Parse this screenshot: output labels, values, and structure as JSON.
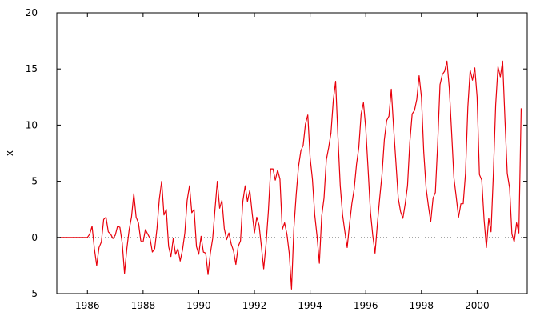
{
  "chart_data": {
    "type": "line",
    "title": "",
    "xlabel": "",
    "ylabel": "x",
    "xlim": [
      1984.9,
      2001.8
    ],
    "ylim": [
      -5,
      20
    ],
    "x_ticks": [
      1986,
      1988,
      1990,
      1992,
      1994,
      1996,
      1998,
      2000
    ],
    "x_tick_labels": [
      "1986",
      "1988",
      "1990",
      "1992",
      "1994",
      "1996",
      "1998",
      "2000"
    ],
    "y_ticks": [
      -5,
      0,
      5,
      10,
      15,
      20
    ],
    "y_tick_labels": [
      "-5",
      "0",
      "5",
      "10",
      "15",
      "20"
    ],
    "grid": false,
    "legend": "none",
    "zero_line": {
      "y": 0,
      "style": "dotted",
      "color": "#888888"
    },
    "line_color": "#e8000b",
    "series": [
      {
        "name": "",
        "x": [
          1985.0,
          1985.083,
          1985.167,
          1985.25,
          1985.333,
          1985.417,
          1985.5,
          1985.583,
          1985.667,
          1985.75,
          1985.833,
          1985.917,
          1986.0,
          1986.083,
          1986.167,
          1986.25,
          1986.333,
          1986.417,
          1986.5,
          1986.583,
          1986.667,
          1986.75,
          1986.833,
          1986.917,
          1987.0,
          1987.083,
          1987.167,
          1987.25,
          1987.333,
          1987.417,
          1987.5,
          1987.583,
          1987.667,
          1987.75,
          1987.833,
          1987.917,
          1988.0,
          1988.083,
          1988.167,
          1988.25,
          1988.333,
          1988.417,
          1988.5,
          1988.583,
          1988.667,
          1988.75,
          1988.833,
          1988.917,
          1989.0,
          1989.083,
          1989.167,
          1989.25,
          1989.333,
          1989.417,
          1989.5,
          1989.583,
          1989.667,
          1989.75,
          1989.833,
          1989.917,
          1990.0,
          1990.083,
          1990.167,
          1990.25,
          1990.333,
          1990.417,
          1990.5,
          1990.583,
          1990.667,
          1990.75,
          1990.833,
          1990.917,
          1991.0,
          1991.083,
          1991.167,
          1991.25,
          1991.333,
          1991.417,
          1991.5,
          1991.583,
          1991.667,
          1991.75,
          1991.833,
          1991.917,
          1992.0,
          1992.083,
          1992.167,
          1992.25,
          1992.333,
          1992.417,
          1992.5,
          1992.583,
          1992.667,
          1992.75,
          1992.833,
          1992.917,
          1993.0,
          1993.083,
          1993.167,
          1993.25,
          1993.333,
          1993.417,
          1993.5,
          1993.583,
          1993.667,
          1993.75,
          1993.833,
          1993.917,
          1994.0,
          1994.083,
          1994.167,
          1994.25,
          1994.333,
          1994.417,
          1994.5,
          1994.583,
          1994.667,
          1994.75,
          1994.833,
          1994.917,
          1995.0,
          1995.083,
          1995.167,
          1995.25,
          1995.333,
          1995.417,
          1995.5,
          1995.583,
          1995.667,
          1995.75,
          1995.833,
          1995.917,
          1996.0,
          1996.083,
          1996.167,
          1996.25,
          1996.333,
          1996.417,
          1996.5,
          1996.583,
          1996.667,
          1996.75,
          1996.833,
          1996.917,
          1997.0,
          1997.083,
          1997.167,
          1997.25,
          1997.333,
          1997.417,
          1997.5,
          1997.583,
          1997.667,
          1997.75,
          1997.833,
          1997.917,
          1998.0,
          1998.083,
          1998.167,
          1998.25,
          1998.333,
          1998.417,
          1998.5,
          1998.583,
          1998.667,
          1998.75,
          1998.833,
          1998.917,
          1999.0,
          1999.083,
          1999.167,
          1999.25,
          1999.333,
          1999.417,
          1999.5,
          1999.583,
          1999.667,
          1999.75,
          1999.833,
          1999.917,
          2000.0,
          2000.083,
          2000.167,
          2000.25,
          2000.333,
          2000.417,
          2000.5,
          2000.583,
          2000.667,
          2000.75,
          2000.833,
          2000.917,
          2001.0,
          2001.083,
          2001.167,
          2001.25,
          2001.333,
          2001.417,
          2001.5,
          2001.583
        ],
        "y": [
          0,
          0,
          0,
          0,
          0,
          0,
          0,
          0,
          0,
          0,
          0,
          0,
          0,
          0.3,
          1.0,
          -1.0,
          -2.5,
          -0.9,
          -0.4,
          1.6,
          1.8,
          0.5,
          0.3,
          -0.1,
          0.2,
          1.0,
          0.9,
          -0.5,
          -3.2,
          -1.0,
          0.7,
          1.8,
          3.9,
          1.8,
          1.3,
          -0.3,
          -0.4,
          0.7,
          0.3,
          -0.1,
          -1.3,
          -1.0,
          0.8,
          3.4,
          5.0,
          2.0,
          2.5,
          -0.8,
          -1.7,
          -0.1,
          -1.5,
          -1.0,
          -2.1,
          -1.1,
          0.4,
          3.3,
          4.6,
          2.2,
          2.5,
          -0.8,
          -1.5,
          0.1,
          -1.3,
          -1.4,
          -3.3,
          -1.4,
          -0.1,
          2.5,
          5.0,
          2.6,
          3.3,
          0.8,
          -0.2,
          0.4,
          -0.6,
          -1.2,
          -2.4,
          -0.8,
          -0.3,
          3.2,
          4.6,
          3.2,
          4.2,
          2.2,
          0.4,
          1.8,
          1.1,
          -0.8,
          -2.8,
          -0.6,
          2.3,
          6.1,
          6.1,
          5.1,
          6.0,
          5.2,
          0.7,
          1.3,
          0.3,
          -1.4,
          -4.6,
          0.8,
          3.8,
          6.3,
          7.7,
          8.2,
          10.1,
          10.9,
          7.1,
          5.2,
          2.0,
          0.1,
          -2.3,
          1.9,
          3.5,
          6.9,
          8.0,
          9.3,
          12.2,
          13.9,
          9.0,
          4.6,
          2.0,
          0.5,
          -0.9,
          1.2,
          3.0,
          4.3,
          6.5,
          8.0,
          11.0,
          12.0,
          9.7,
          6.1,
          2.3,
          0.2,
          -1.4,
          1.2,
          3.5,
          5.6,
          8.7,
          10.4,
          10.8,
          13.2,
          9.8,
          6.7,
          3.5,
          2.3,
          1.7,
          3.0,
          4.6,
          8.5,
          11.0,
          11.3,
          12.3,
          14.4,
          12.5,
          7.6,
          4.4,
          2.8,
          1.4,
          3.5,
          4.0,
          8.3,
          13.6,
          14.5,
          14.8,
          15.7,
          13.3,
          9.4,
          5.3,
          3.6,
          1.8,
          3.0,
          3.0,
          5.7,
          11.6,
          14.9,
          14.0,
          15.1,
          12.5,
          5.6,
          5.1,
          1.6,
          -0.9,
          1.7,
          0.5,
          5.6,
          11.8,
          15.2,
          14.3,
          15.7,
          10.5,
          5.7,
          4.4,
          0.3,
          -0.4,
          1.3,
          0.4,
          11.5
        ]
      }
    ]
  }
}
